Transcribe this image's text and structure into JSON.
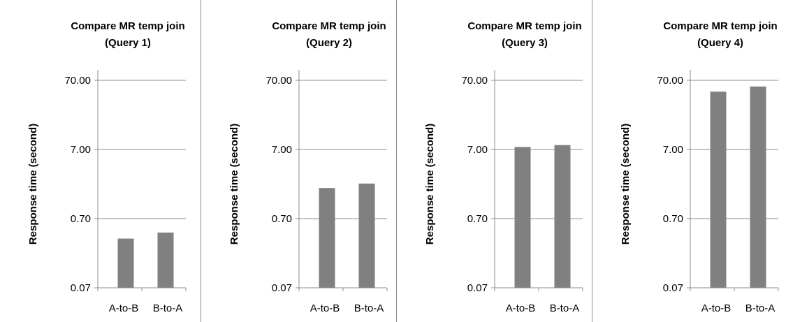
{
  "chart_data": [
    {
      "type": "bar",
      "title_lines": [
        "Compare MR temp join",
        "(Query 1)"
      ],
      "ylabel": "Response time (second)",
      "yscale": "log",
      "ylim": [
        0.07,
        70
      ],
      "yticks": [
        "0.07",
        "0.70",
        "7.00",
        "70.00"
      ],
      "grid": true,
      "categories": [
        "A-to-B",
        "B-to-A"
      ],
      "values": [
        0.36,
        0.44
      ],
      "bar_color": "#808080"
    },
    {
      "type": "bar",
      "title_lines": [
        "Compare MR temp join",
        "(Query 2)"
      ],
      "ylabel": "Response time (second)",
      "yscale": "log",
      "ylim": [
        0.07,
        70
      ],
      "yticks": [
        "0.07",
        "0.70",
        "7.00",
        "70.00"
      ],
      "grid": true,
      "categories": [
        "A-to-B",
        "B-to-A"
      ],
      "values": [
        1.94,
        2.25
      ],
      "bar_color": "#808080"
    },
    {
      "type": "bar",
      "title_lines": [
        "Compare MR temp join",
        "(Query 3)"
      ],
      "ylabel": "Response time (second)",
      "yscale": "log",
      "ylim": [
        0.07,
        70
      ],
      "yticks": [
        "0.07",
        "0.70",
        "7.00",
        "70.00"
      ],
      "grid": true,
      "categories": [
        "A-to-B",
        "B-to-A"
      ],
      "values": [
        7.6,
        8.1
      ],
      "bar_color": "#808080"
    },
    {
      "type": "bar",
      "title_lines": [
        "Compare MR temp join",
        "(Query 4)"
      ],
      "ylabel": "Response time (second)",
      "yscale": "log",
      "ylim": [
        0.07,
        70
      ],
      "yticks": [
        "0.07",
        "0.70",
        "7.00",
        "70.00"
      ],
      "grid": true,
      "categories": [
        "A-to-B",
        "B-to-A"
      ],
      "values": [
        48,
        57
      ],
      "bar_color": "#808080"
    }
  ]
}
